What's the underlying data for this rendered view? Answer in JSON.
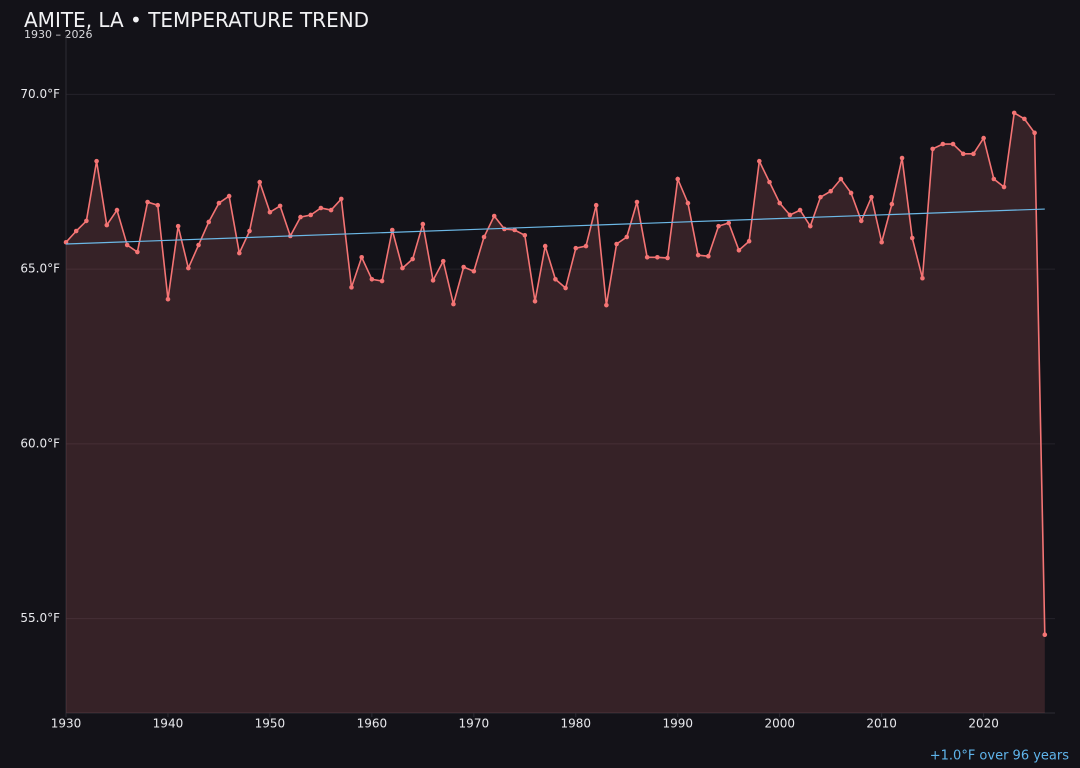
{
  "chart_data": {
    "type": "line",
    "title": "AMITE, LA • TEMPERATURE TREND",
    "subtitle": "1930 – 2026",
    "annotation": "+1.0°F over 96 years",
    "x": [
      1930,
      1931,
      1932,
      1933,
      1934,
      1935,
      1936,
      1937,
      1938,
      1939,
      1940,
      1941,
      1942,
      1943,
      1944,
      1945,
      1946,
      1947,
      1948,
      1949,
      1950,
      1951,
      1952,
      1953,
      1954,
      1955,
      1956,
      1957,
      1958,
      1959,
      1960,
      1961,
      1962,
      1963,
      1964,
      1965,
      1966,
      1967,
      1968,
      1969,
      1970,
      1971,
      1972,
      1973,
      1974,
      1975,
      1976,
      1977,
      1978,
      1979,
      1980,
      1981,
      1982,
      1983,
      1984,
      1985,
      1986,
      1987,
      1988,
      1989,
      1990,
      1991,
      1992,
      1993,
      1994,
      1995,
      1996,
      1997,
      1998,
      1999,
      2000,
      2001,
      2002,
      2003,
      2004,
      2005,
      2006,
      2007,
      2008,
      2009,
      2010,
      2011,
      2012,
      2013,
      2014,
      2015,
      2016,
      2017,
      2018,
      2019,
      2020,
      2021,
      2022,
      2023,
      2024,
      2025,
      2026
    ],
    "series": [
      {
        "color": "#f47474",
        "values": [
          65.77,
          66.09,
          66.38,
          68.09,
          66.26,
          66.69,
          65.69,
          65.49,
          66.92,
          66.83,
          64.14,
          66.23,
          65.03,
          65.69,
          66.35,
          66.89,
          67.09,
          65.46,
          66.09,
          67.49,
          66.63,
          66.81,
          65.95,
          66.49,
          66.55,
          66.75,
          66.69,
          67.01,
          64.48,
          65.34,
          64.71,
          64.66,
          66.12,
          65.03,
          65.29,
          66.29,
          64.68,
          65.23,
          64.0,
          65.06,
          64.94,
          65.92,
          66.52,
          66.15,
          66.12,
          65.97,
          64.08,
          65.66,
          64.71,
          64.46,
          65.6,
          65.66,
          66.83,
          63.97,
          65.72,
          65.92,
          66.92,
          65.34,
          65.34,
          65.32,
          67.58,
          66.89,
          65.4,
          65.37,
          66.23,
          66.32,
          65.54,
          65.8,
          68.09,
          67.49,
          66.89,
          66.55,
          66.69,
          66.23,
          67.06,
          67.23,
          67.58,
          67.18,
          66.38,
          67.06,
          65.77,
          66.86,
          68.18,
          65.89,
          64.74,
          68.44,
          68.58,
          68.58,
          68.3,
          68.3,
          68.75,
          67.58,
          67.35,
          69.47,
          69.3,
          68.9,
          54.54
        ]
      },
      {
        "color": "#6cb8e6",
        "x": [
          1930,
          2026
        ],
        "values": [
          65.72,
          66.72
        ]
      }
    ],
    "xlim": [
      1930,
      2027
    ],
    "ylim": [
      52.3,
      71.7
    ],
    "xticks": [
      1930,
      1940,
      1950,
      1960,
      1970,
      1980,
      1990,
      2000,
      2010,
      2020
    ],
    "yticks": [
      {
        "value": 55,
        "label": "55.0°F"
      },
      {
        "value": 60,
        "label": "60.0°F"
      },
      {
        "value": 65,
        "label": "65.0°F"
      },
      {
        "value": 70,
        "label": "70.0°F"
      }
    ],
    "grid": true
  }
}
